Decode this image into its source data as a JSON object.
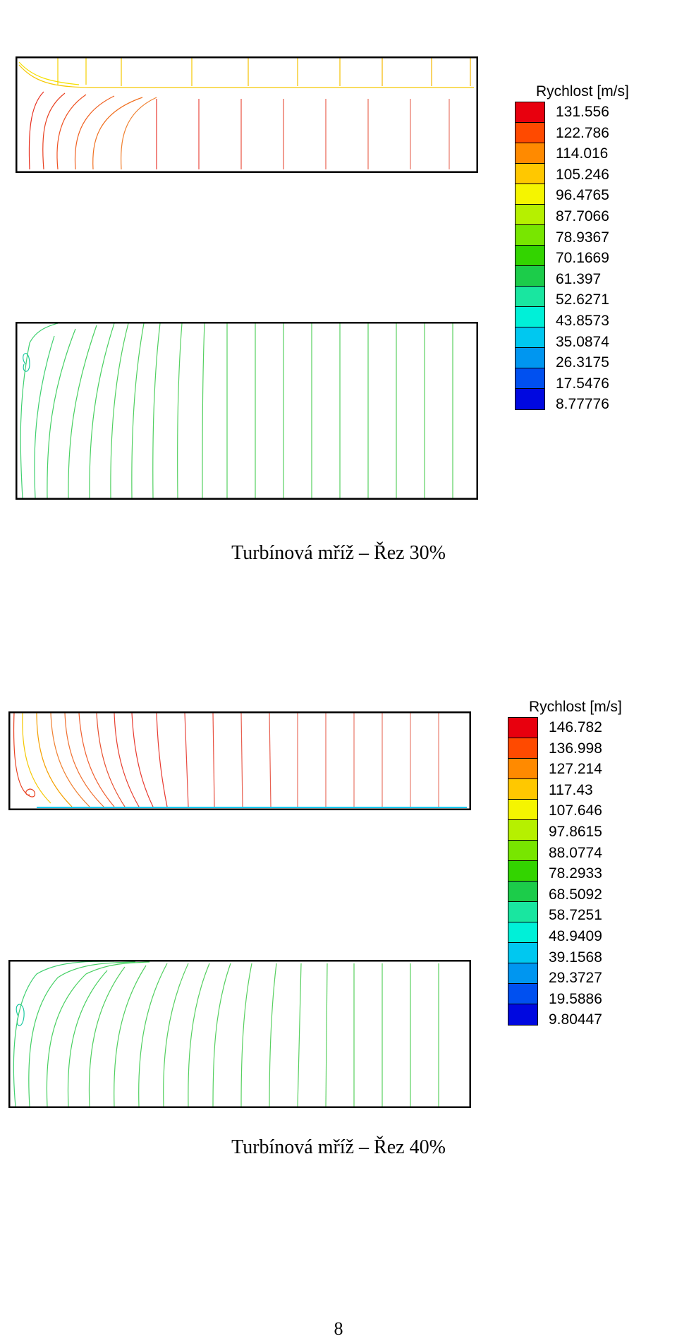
{
  "figures": [
    {
      "legend_title": "Rychlost [m/s]",
      "legend_values": [
        "131.556",
        "122.786",
        "114.016",
        "105.246",
        "96.4765",
        "87.7066",
        "78.9367",
        "70.1669",
        "61.397",
        "52.6271",
        "43.8573",
        "35.0874",
        "26.3175",
        "17.5476",
        "8.77776"
      ],
      "caption": "Turbínová mříž – Řez 30%"
    },
    {
      "legend_title": "Rychlost [m/s]",
      "legend_values": [
        "146.782",
        "136.998",
        "127.214",
        "117.43",
        "107.646",
        "97.8615",
        "88.0774",
        "78.2933",
        "68.5092",
        "58.7251",
        "48.9409",
        "39.1568",
        "29.3727",
        "19.5886",
        "9.80447"
      ],
      "caption": "Turbínová mříž – Řez 40%"
    }
  ],
  "colors": {
    "scale": [
      "#e8000e",
      "#ff4a00",
      "#ff8a00",
      "#ffc800",
      "#f5f500",
      "#b6f000",
      "#78e600",
      "#33d400",
      "#1ccc4a",
      "#19e6a0",
      "#00f0d8",
      "#00c8f0",
      "#0096f0",
      "#0050f0",
      "#0008e0"
    ]
  },
  "page_number": "8"
}
